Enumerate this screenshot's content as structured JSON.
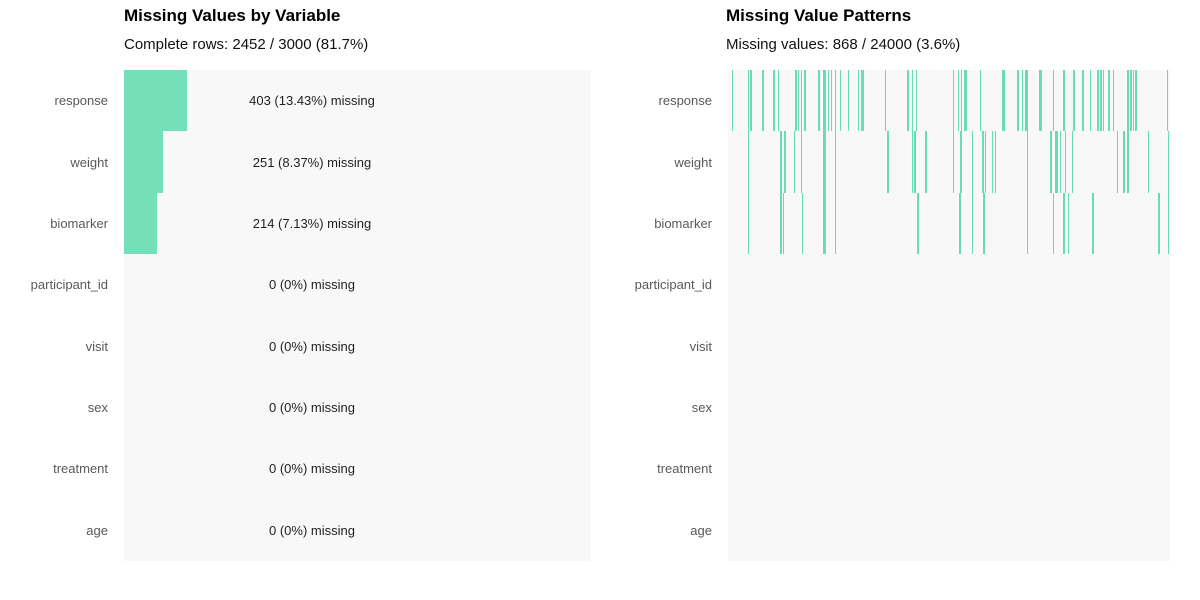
{
  "figure": {
    "background": "#ffffff",
    "plot_background": "#f8f8f8",
    "accent_green": "#74e0ba",
    "pattern_line_green": "#68dcb2",
    "label_gray": "#595959"
  },
  "chart_data": [
    {
      "type": "bar",
      "orientation": "horizontal",
      "title": "Missing Values by Variable",
      "subtitle": "Complete rows: 2452 / 3000 (81.7%)",
      "categories": [
        "response",
        "weight",
        "biomarker",
        "participant_id",
        "visit",
        "sex",
        "treatment",
        "age"
      ],
      "values": [
        13.43,
        8.37,
        7.13,
        0,
        0,
        0,
        0,
        0
      ],
      "counts": [
        403,
        251,
        214,
        0,
        0,
        0,
        0,
        0
      ],
      "labels": [
        "403 (13.43%) missing",
        "251 (8.37%) missing",
        "214 (7.13%) missing",
        "0 (0%) missing",
        "0 (0%) missing",
        "0 (0%) missing",
        "0 (0%) missing",
        "0 (0%) missing"
      ],
      "xlim": [
        0,
        100
      ],
      "xlabel": "",
      "ylabel": "",
      "grid": false,
      "bar_color": "#74e0ba",
      "plot_background": "#f8f8f8"
    },
    {
      "type": "heatmap",
      "title": "Missing Value Patterns",
      "subtitle": "Missing values: 868 / 24000 (3.6%)",
      "categories": [
        "response",
        "weight",
        "biomarker",
        "participant_id",
        "visit",
        "sex",
        "treatment",
        "age"
      ],
      "n_rows": 3000,
      "n_cells": 24000,
      "n_missing": 868,
      "line_color": "#68dcb2",
      "plot_background": "#f8f8f8",
      "missing_positions": {
        "response": [
          0.009,
          0.045,
          0.05,
          0.077,
          0.102,
          0.113,
          0.152,
          0.158,
          0.165,
          0.172,
          0.204,
          0.215,
          0.219,
          0.226,
          0.233,
          0.242,
          0.253,
          0.271,
          0.294,
          0.301,
          0.305,
          0.355,
          0.405,
          0.416,
          0.425,
          0.509,
          0.52,
          0.527,
          0.534,
          0.538,
          0.57,
          0.62,
          0.624,
          0.654,
          0.665,
          0.672,
          0.676,
          0.704,
          0.708,
          0.735,
          0.758,
          0.781,
          0.801,
          0.819,
          0.835,
          0.842,
          0.848,
          0.86,
          0.871,
          0.903,
          0.91,
          0.916,
          0.921,
          0.993
        ],
        "weight": [
          0.045,
          0.118,
          0.127,
          0.149,
          0.165,
          0.215,
          0.219,
          0.242,
          0.36,
          0.416,
          0.421,
          0.446,
          0.509,
          0.525,
          0.552,
          0.575,
          0.581,
          0.597,
          0.604,
          0.676,
          0.729,
          0.74,
          0.744,
          0.751,
          0.762,
          0.778,
          0.88,
          0.894,
          0.903,
          0.95,
          0.995
        ],
        "biomarker": [
          0.045,
          0.118,
          0.124,
          0.167,
          0.215,
          0.219,
          0.242,
          0.428,
          0.523,
          0.552,
          0.577,
          0.676,
          0.735,
          0.758,
          0.769,
          0.824,
          0.973,
          0.995
        ],
        "participant_id": [],
        "visit": [],
        "sex": [],
        "treatment": [],
        "age": []
      }
    }
  ]
}
